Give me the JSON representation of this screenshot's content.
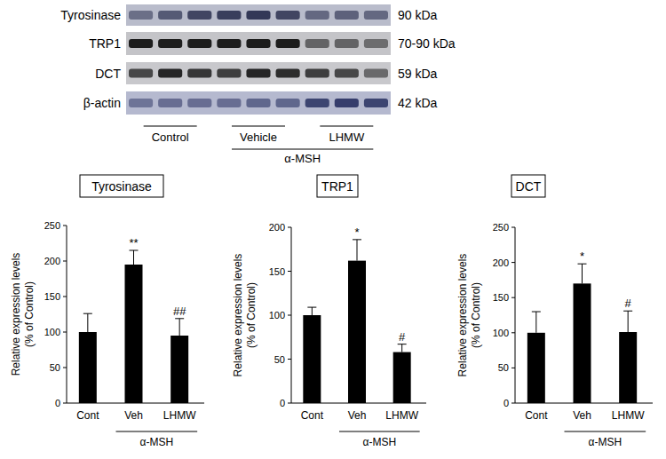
{
  "blot": {
    "rows": [
      {
        "label": "Tyrosinase",
        "size": "90 kDa"
      },
      {
        "label": "TRP1",
        "size": "70-90 kDa"
      },
      {
        "label": "DCT",
        "size": "59 kDa"
      },
      {
        "label": "β-actin",
        "size": "42 kDa"
      }
    ],
    "lanes": [
      "Control",
      "Vehicle",
      "LHMW"
    ],
    "treatment": "α-MSH"
  },
  "chart_data": [
    {
      "type": "bar",
      "title": "Tyrosinase",
      "ylabel": "Relative expression levels\n(% of Control)",
      "categories": [
        "Cont",
        "Veh",
        "LHMW"
      ],
      "values": [
        100,
        195,
        95
      ],
      "errors": [
        26,
        20,
        24
      ],
      "significance": [
        null,
        "**",
        "##"
      ],
      "group_label": "α-MSH",
      "color": "#000000",
      "ylim": [
        0,
        250
      ],
      "yticks": [
        0,
        50,
        100,
        150,
        200,
        250
      ],
      "grid": false
    },
    {
      "type": "bar",
      "title": "TRP1",
      "ylabel": "Relative expression levels\n(% of Control)",
      "categories": [
        "Cont",
        "Veh",
        "LHMW"
      ],
      "values": [
        100,
        162,
        58
      ],
      "errors": [
        9,
        24,
        9
      ],
      "significance": [
        null,
        "*",
        "#"
      ],
      "group_label": "α-MSH",
      "color": "#000000",
      "ylim": [
        0,
        200
      ],
      "yticks": [
        0,
        50,
        100,
        150,
        200
      ],
      "grid": false
    },
    {
      "type": "bar",
      "title": "DCT",
      "ylabel": "Relative expression levels\n(% of Control)",
      "categories": [
        "Cont",
        "Veh",
        "LHMW"
      ],
      "values": [
        100,
        170,
        101
      ],
      "errors": [
        30,
        28,
        30
      ],
      "significance": [
        null,
        "*",
        "#"
      ],
      "group_label": "α-MSH",
      "color": "#000000",
      "ylim": [
        0,
        250
      ],
      "yticks": [
        0,
        50,
        100,
        150,
        200,
        250
      ],
      "grid": false
    }
  ]
}
